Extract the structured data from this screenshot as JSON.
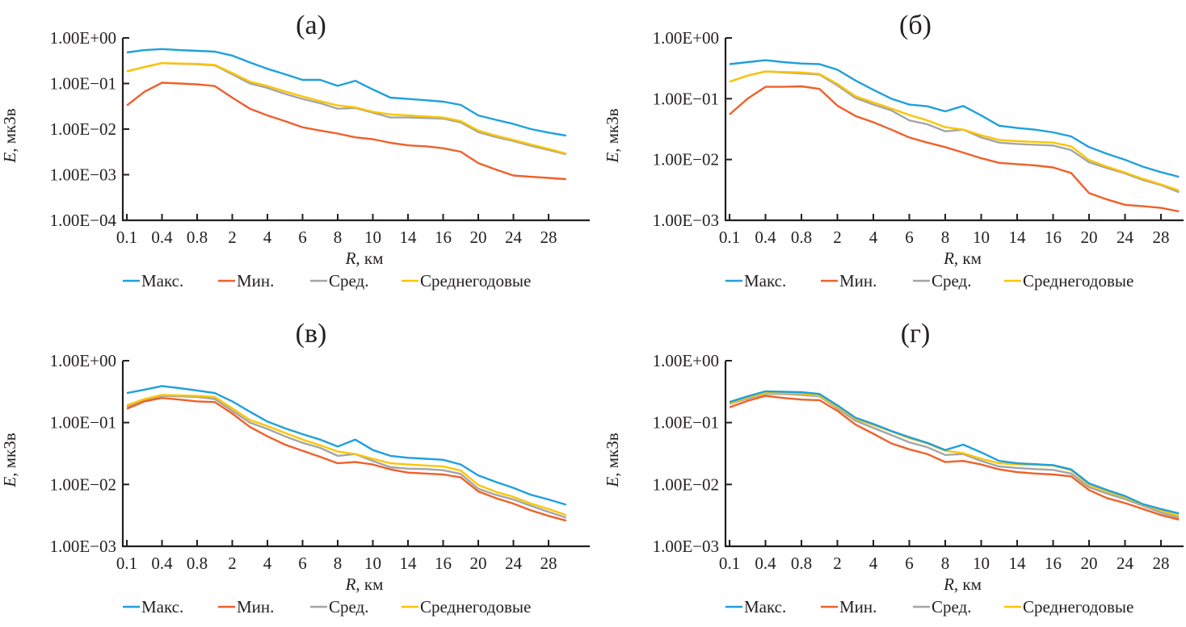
{
  "figure": {
    "legend": [
      "Макс.",
      "Мин.",
      "Сред.",
      "Среднегодовые"
    ],
    "series_colors": [
      "#1fa0dc",
      "#f0602a",
      "#a3a5a8",
      "#fbc500"
    ],
    "axis_color": "#231f20"
  },
  "chart_data": [
    {
      "type": "line",
      "panel": "(а)",
      "title": "(а)",
      "xlabel_italic": "R",
      "xlabel_unit": ", км",
      "ylabel_italic": "E",
      "ylabel_unit": ", мкЗв",
      "yscale": "log",
      "ylim": [
        0.0001,
        1
      ],
      "ytick_labels": [
        "1.00E+00",
        "1.00E−01",
        "1.00E−02",
        "1.00E−03",
        "1.00E−04"
      ],
      "x": [
        0.1,
        0.2,
        0.4,
        0.6,
        0.8,
        1,
        2,
        3,
        4,
        5,
        6,
        7,
        8,
        9,
        10,
        12,
        14,
        15,
        16,
        18,
        20,
        22,
        24,
        26,
        28,
        30
      ],
      "xtick_labels": [
        "0.1",
        "0.4",
        "0.8",
        "2",
        "4",
        "6",
        "8",
        "10",
        "14",
        "16",
        "20",
        "24",
        "28"
      ],
      "legend_position": "bottom",
      "grid": false,
      "series": [
        {
          "name": "Макс.",
          "values": [
            0.48,
            0.54,
            0.57,
            0.54,
            0.52,
            0.5,
            0.41,
            0.29,
            0.21,
            0.16,
            0.12,
            0.12,
            0.089,
            0.115,
            0.074,
            0.049,
            0.046,
            0.043,
            0.04,
            0.034,
            0.02,
            0.016,
            0.013,
            0.01,
            0.0084,
            0.0072
          ]
        },
        {
          "name": "Мин.",
          "values": [
            0.033,
            0.066,
            0.104,
            0.1,
            0.096,
            0.088,
            0.049,
            0.028,
            0.02,
            0.015,
            0.011,
            0.0093,
            0.008,
            0.0066,
            0.006,
            0.005,
            0.0044,
            0.0042,
            0.0038,
            0.0032,
            0.0018,
            0.0013,
            0.00096,
            0.0009,
            0.00085,
            0.0008
          ]
        },
        {
          "name": "Сред.",
          "values": [
            0.185,
            0.23,
            0.28,
            0.27,
            0.265,
            0.25,
            0.16,
            0.1,
            0.08,
            0.059,
            0.046,
            0.037,
            0.028,
            0.029,
            0.023,
            0.018,
            0.018,
            0.0175,
            0.017,
            0.014,
            0.0086,
            0.0067,
            0.0055,
            0.0043,
            0.0035,
            0.0028
          ]
        },
        {
          "name": "Среднегодовые",
          "values": [
            0.185,
            0.23,
            0.28,
            0.275,
            0.27,
            0.255,
            0.17,
            0.11,
            0.088,
            0.067,
            0.052,
            0.041,
            0.033,
            0.03,
            0.024,
            0.021,
            0.02,
            0.019,
            0.018,
            0.015,
            0.0093,
            0.0072,
            0.0058,
            0.0046,
            0.0037,
            0.0029
          ]
        }
      ]
    },
    {
      "type": "line",
      "panel": "(б)",
      "title": "(б)",
      "xlabel_italic": "R",
      "xlabel_unit": ", км",
      "ylabel_italic": "E",
      "ylabel_unit": ", мкЗв",
      "yscale": "log",
      "ylim": [
        0.001,
        1
      ],
      "ytick_labels": [
        "1.00E+00",
        "1.00E−01",
        "1.00E−02",
        "1.00E−03"
      ],
      "x": [
        0.1,
        0.2,
        0.4,
        0.6,
        0.8,
        1,
        2,
        3,
        4,
        5,
        6,
        7,
        8,
        9,
        10,
        12,
        14,
        15,
        16,
        18,
        20,
        22,
        24,
        26,
        28,
        30
      ],
      "xtick_labels": [
        "0.1",
        "0.4",
        "0.8",
        "2",
        "4",
        "6",
        "8",
        "10",
        "14",
        "16",
        "20",
        "24",
        "28"
      ],
      "legend_position": "bottom",
      "grid": false,
      "series": [
        {
          "name": "Макс.",
          "values": [
            0.37,
            0.4,
            0.43,
            0.4,
            0.38,
            0.37,
            0.3,
            0.2,
            0.14,
            0.1,
            0.08,
            0.075,
            0.062,
            0.076,
            0.053,
            0.036,
            0.033,
            0.031,
            0.028,
            0.024,
            0.016,
            0.0124,
            0.0099,
            0.0076,
            0.0062,
            0.0052
          ]
        },
        {
          "name": "Мин.",
          "values": [
            0.055,
            0.1,
            0.157,
            0.157,
            0.16,
            0.145,
            0.077,
            0.052,
            0.041,
            0.031,
            0.023,
            0.019,
            0.016,
            0.013,
            0.0105,
            0.0088,
            0.0084,
            0.008,
            0.0074,
            0.006,
            0.0028,
            0.0022,
            0.0018,
            0.0017,
            0.0016,
            0.0014
          ]
        },
        {
          "name": "Сред.",
          "values": [
            0.19,
            0.24,
            0.28,
            0.27,
            0.26,
            0.25,
            0.165,
            0.103,
            0.08,
            0.064,
            0.044,
            0.038,
            0.029,
            0.031,
            0.023,
            0.019,
            0.018,
            0.0175,
            0.017,
            0.0143,
            0.009,
            0.0072,
            0.0059,
            0.0046,
            0.0038,
            0.0029
          ]
        },
        {
          "name": "Среднегодовые",
          "values": [
            0.19,
            0.24,
            0.28,
            0.275,
            0.27,
            0.255,
            0.175,
            0.11,
            0.087,
            0.069,
            0.054,
            0.044,
            0.034,
            0.031,
            0.025,
            0.021,
            0.02,
            0.0195,
            0.019,
            0.0165,
            0.0098,
            0.0076,
            0.0061,
            0.0048,
            0.0039,
            0.0031
          ]
        }
      ]
    },
    {
      "type": "line",
      "panel": "(в)",
      "title": "(в)",
      "xlabel_italic": "R",
      "xlabel_unit": ", км",
      "ylabel_italic": "E",
      "ylabel_unit": ", мкЗв",
      "yscale": "log",
      "ylim": [
        0.001,
        1
      ],
      "ytick_labels": [
        "1.00E+00",
        "1.00E−01",
        "1.00E−02",
        "1.00E−03"
      ],
      "x": [
        0.1,
        0.2,
        0.4,
        0.6,
        0.8,
        1,
        2,
        3,
        4,
        5,
        6,
        7,
        8,
        9,
        10,
        12,
        14,
        15,
        16,
        18,
        20,
        22,
        24,
        26,
        28,
        30
      ],
      "xtick_labels": [
        "0.1",
        "0.4",
        "0.8",
        "2",
        "4",
        "6",
        "8",
        "10",
        "14",
        "16",
        "20",
        "24",
        "28"
      ],
      "legend_position": "bottom",
      "grid": false,
      "series": [
        {
          "name": "Макс.",
          "values": [
            0.3,
            0.34,
            0.39,
            0.36,
            0.33,
            0.3,
            0.22,
            0.15,
            0.104,
            0.081,
            0.065,
            0.053,
            0.041,
            0.053,
            0.036,
            0.029,
            0.027,
            0.026,
            0.025,
            0.021,
            0.014,
            0.011,
            0.0088,
            0.0068,
            0.0057,
            0.0047
          ]
        },
        {
          "name": "Мин.",
          "values": [
            0.167,
            0.22,
            0.25,
            0.235,
            0.22,
            0.215,
            0.14,
            0.085,
            0.06,
            0.044,
            0.035,
            0.028,
            0.022,
            0.023,
            0.021,
            0.0175,
            0.0155,
            0.015,
            0.0145,
            0.013,
            0.0077,
            0.006,
            0.0049,
            0.0038,
            0.0031,
            0.0026
          ]
        },
        {
          "name": "Сред.",
          "values": [
            0.18,
            0.23,
            0.27,
            0.265,
            0.26,
            0.24,
            0.155,
            0.1,
            0.079,
            0.06,
            0.047,
            0.039,
            0.029,
            0.031,
            0.024,
            0.019,
            0.018,
            0.0177,
            0.017,
            0.0148,
            0.0085,
            0.0068,
            0.0057,
            0.0045,
            0.0036,
            0.0029
          ]
        },
        {
          "name": "Среднегодовые",
          "values": [
            0.19,
            0.24,
            0.28,
            0.275,
            0.27,
            0.26,
            0.17,
            0.11,
            0.088,
            0.068,
            0.053,
            0.043,
            0.034,
            0.031,
            0.026,
            0.022,
            0.021,
            0.0203,
            0.0195,
            0.0168,
            0.0098,
            0.0076,
            0.0063,
            0.0049,
            0.004,
            0.0032
          ]
        }
      ]
    },
    {
      "type": "line",
      "panel": "(г)",
      "title": "(г)",
      "xlabel_italic": "R",
      "xlabel_unit": ", км",
      "ylabel_italic": "E",
      "ylabel_unit": ", мкЗв",
      "yscale": "log",
      "ylim": [
        0.001,
        1
      ],
      "ytick_labels": [
        "1.00E+00",
        "1.00E−01",
        "1.00E−02",
        "1.00E−03"
      ],
      "x": [
        0.1,
        0.2,
        0.4,
        0.6,
        0.8,
        1,
        2,
        3,
        4,
        5,
        6,
        7,
        8,
        9,
        10,
        12,
        14,
        15,
        16,
        18,
        20,
        22,
        24,
        26,
        28,
        30
      ],
      "xtick_labels": [
        "0.1",
        "0.4",
        "0.8",
        "2",
        "4",
        "6",
        "8",
        "10",
        "14",
        "16",
        "20",
        "24",
        "28"
      ],
      "legend_position": "bottom",
      "grid": false,
      "series": [
        {
          "name": "Макс.",
          "values": [
            0.215,
            0.265,
            0.32,
            0.315,
            0.31,
            0.29,
            0.19,
            0.12,
            0.095,
            0.073,
            0.058,
            0.047,
            0.036,
            0.044,
            0.033,
            0.024,
            0.022,
            0.0213,
            0.0205,
            0.0175,
            0.0104,
            0.0081,
            0.0065,
            0.0048,
            0.004,
            0.0034
          ]
        },
        {
          "name": "Мин.",
          "values": [
            0.176,
            0.225,
            0.27,
            0.25,
            0.235,
            0.23,
            0.155,
            0.093,
            0.066,
            0.046,
            0.037,
            0.031,
            0.023,
            0.024,
            0.021,
            0.0175,
            0.0158,
            0.015,
            0.0145,
            0.0135,
            0.0081,
            0.006,
            0.005,
            0.004,
            0.0032,
            0.0027
          ]
        },
        {
          "name": "Сред.",
          "values": [
            0.2,
            0.245,
            0.29,
            0.29,
            0.28,
            0.265,
            0.17,
            0.107,
            0.082,
            0.063,
            0.048,
            0.04,
            0.03,
            0.031,
            0.024,
            0.0195,
            0.0185,
            0.0177,
            0.0172,
            0.015,
            0.009,
            0.0071,
            0.0058,
            0.0045,
            0.0035,
            0.0029
          ]
        },
        {
          "name": "Среднегодовые",
          "values": [
            0.205,
            0.255,
            0.3,
            0.3,
            0.295,
            0.275,
            0.18,
            0.115,
            0.091,
            0.072,
            0.056,
            0.046,
            0.035,
            0.032,
            0.026,
            0.022,
            0.021,
            0.0207,
            0.0202,
            0.017,
            0.0098,
            0.0077,
            0.0062,
            0.0047,
            0.0038,
            0.0031
          ]
        }
      ]
    }
  ]
}
